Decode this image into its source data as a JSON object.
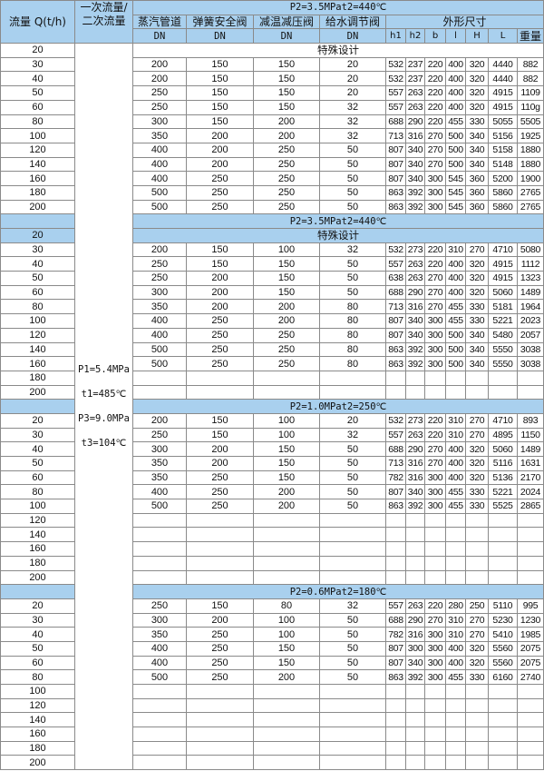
{
  "header": {
    "flow": "流量 Q(t/h)",
    "secondary_flow": "一次流量/二次流量",
    "steam_pipe": "蒸汽管道",
    "safety_valve": "弹簧安全阀",
    "reducing_valve": "减温减压阀",
    "feed_valve": "给水调节阀",
    "dimensions": "外形尺寸",
    "dn": "DN",
    "dim_cols": [
      "h1",
      "h2",
      "b",
      "l",
      "H",
      "L",
      "重量"
    ]
  },
  "side_params": [
    "P1=5.4MPa",
    "t1=485℃",
    "P3=9.0MPa",
    "t3=104℃"
  ],
  "colors": {
    "header_bg": "#a9d0ee",
    "border": "#8a8a8a"
  },
  "sections": [
    {
      "title": "P2=3.5MPat2=440℃",
      "title_in_header": true,
      "rows": [
        {
          "flow": "20",
          "special": "特殊设计"
        },
        {
          "flow": "30",
          "vals": [
            "200",
            "150",
            "150",
            "20",
            "532",
            "237",
            "220",
            "400",
            "320",
            "4440",
            "882"
          ]
        },
        {
          "flow": "40",
          "vals": [
            "200",
            "150",
            "150",
            "20",
            "532",
            "237",
            "220",
            "400",
            "320",
            "4440",
            "882"
          ]
        },
        {
          "flow": "50",
          "vals": [
            "250",
            "150",
            "150",
            "20",
            "557",
            "263",
            "220",
            "400",
            "320",
            "4915",
            "1109"
          ]
        },
        {
          "flow": "60",
          "vals": [
            "250",
            "150",
            "150",
            "32",
            "557",
            "263",
            "220",
            "400",
            "320",
            "4915",
            "110g"
          ]
        },
        {
          "flow": "80",
          "vals": [
            "300",
            "150",
            "200",
            "32",
            "688",
            "290",
            "220",
            "455",
            "330",
            "5055",
            "5505"
          ]
        },
        {
          "flow": "100",
          "vals": [
            "350",
            "200",
            "200",
            "32",
            "713",
            "316",
            "270",
            "500",
            "340",
            "5156",
            "1925"
          ]
        },
        {
          "flow": "120",
          "vals": [
            "400",
            "200",
            "250",
            "50",
            "807",
            "340",
            "270",
            "500",
            "340",
            "5158",
            "1880"
          ]
        },
        {
          "flow": "140",
          "vals": [
            "400",
            "200",
            "250",
            "50",
            "807",
            "340",
            "270",
            "500",
            "340",
            "5148",
            "1880"
          ]
        },
        {
          "flow": "160",
          "vals": [
            "400",
            "250",
            "250",
            "50",
            "807",
            "340",
            "300",
            "545",
            "360",
            "5200",
            "1900"
          ]
        },
        {
          "flow": "180",
          "vals": [
            "500",
            "250",
            "250",
            "50",
            "863",
            "392",
            "300",
            "545",
            "360",
            "5860",
            "2765"
          ]
        },
        {
          "flow": "200",
          "vals": [
            "500",
            "250",
            "250",
            "50",
            "863",
            "392",
            "300",
            "545",
            "360",
            "5860",
            "2765"
          ]
        }
      ]
    },
    {
      "title": "P2=3.5MPat2=440℃",
      "rows": [
        {
          "flow": "20",
          "special": "特殊设计",
          "highlight": true
        },
        {
          "flow": "30",
          "vals": [
            "200",
            "150",
            "100",
            "32",
            "532",
            "273",
            "220",
            "310",
            "270",
            "4710",
            "5080"
          ]
        },
        {
          "flow": "40",
          "vals": [
            "250",
            "150",
            "150",
            "50",
            "557",
            "263",
            "220",
            "400",
            "320",
            "4915",
            "1112"
          ]
        },
        {
          "flow": "50",
          "vals": [
            "250",
            "200",
            "150",
            "50",
            "638",
            "263",
            "270",
            "400",
            "320",
            "4915",
            "1323"
          ]
        },
        {
          "flow": "60",
          "vals": [
            "300",
            "200",
            "150",
            "50",
            "688",
            "290",
            "270",
            "400",
            "320",
            "5060",
            "1489"
          ]
        },
        {
          "flow": "80",
          "vals": [
            "350",
            "200",
            "200",
            "80",
            "713",
            "316",
            "270",
            "455",
            "330",
            "5181",
            "1964"
          ]
        },
        {
          "flow": "100",
          "vals": [
            "400",
            "250",
            "200",
            "80",
            "807",
            "340",
            "300",
            "455",
            "330",
            "5221",
            "2023"
          ]
        },
        {
          "flow": "120",
          "vals": [
            "400",
            "250",
            "250",
            "80",
            "807",
            "340",
            "300",
            "500",
            "340",
            "5480",
            "2057"
          ]
        },
        {
          "flow": "140",
          "vals": [
            "500",
            "250",
            "250",
            "80",
            "863",
            "392",
            "300",
            "500",
            "340",
            "5550",
            "3038"
          ]
        },
        {
          "flow": "160",
          "vals": [
            "500",
            "250",
            "250",
            "80",
            "863",
            "392",
            "300",
            "500",
            "340",
            "5550",
            "3038"
          ]
        },
        {
          "flow": "180",
          "vals": [
            "",
            "",
            "",
            "",
            "",
            "",
            "",
            "",
            "",
            "",
            ""
          ]
        },
        {
          "flow": "200",
          "vals": [
            "",
            "",
            "",
            "",
            "",
            "",
            "",
            "",
            "",
            "",
            ""
          ]
        }
      ]
    },
    {
      "title": "P2=1.0MPat2=250℃",
      "rows": [
        {
          "flow": "20",
          "vals": [
            "200",
            "150",
            "100",
            "20",
            "532",
            "273",
            "220",
            "310",
            "270",
            "4710",
            "893"
          ]
        },
        {
          "flow": "30",
          "vals": [
            "250",
            "150",
            "100",
            "32",
            "557",
            "263",
            "220",
            "310",
            "270",
            "4895",
            "1150"
          ]
        },
        {
          "flow": "40",
          "vals": [
            "300",
            "200",
            "150",
            "50",
            "688",
            "290",
            "270",
            "400",
            "320",
            "5060",
            "1489"
          ]
        },
        {
          "flow": "50",
          "vals": [
            "350",
            "200",
            "150",
            "50",
            "713",
            "316",
            "270",
            "400",
            "320",
            "5116",
            "1631"
          ]
        },
        {
          "flow": "60",
          "vals": [
            "350",
            "250",
            "150",
            "50",
            "782",
            "316",
            "300",
            "400",
            "320",
            "5136",
            "2170"
          ]
        },
        {
          "flow": "80",
          "vals": [
            "400",
            "250",
            "200",
            "50",
            "807",
            "340",
            "300",
            "455",
            "330",
            "5221",
            "2024"
          ]
        },
        {
          "flow": "100",
          "vals": [
            "500",
            "250",
            "200",
            "50",
            "863",
            "392",
            "300",
            "455",
            "330",
            "5525",
            "2865"
          ]
        },
        {
          "flow": "120",
          "vals": [
            "",
            "",
            "",
            "",
            "",
            "",
            "",
            "",
            "",
            "",
            ""
          ]
        },
        {
          "flow": "140",
          "vals": [
            "",
            "",
            "",
            "",
            "",
            "",
            "",
            "",
            "",
            "",
            ""
          ]
        },
        {
          "flow": "160",
          "vals": [
            "",
            "",
            "",
            "",
            "",
            "",
            "",
            "",
            "",
            "",
            ""
          ]
        },
        {
          "flow": "180",
          "vals": [
            "",
            "",
            "",
            "",
            "",
            "",
            "",
            "",
            "",
            "",
            ""
          ]
        },
        {
          "flow": "200",
          "vals": [
            "",
            "",
            "",
            "",
            "",
            "",
            "",
            "",
            "",
            "",
            ""
          ]
        }
      ]
    },
    {
      "title": "P2=0.6MPat2=180℃",
      "rows": [
        {
          "flow": "20",
          "vals": [
            "250",
            "150",
            "80",
            "32",
            "557",
            "263",
            "220",
            "280",
            "250",
            "5110",
            "995"
          ]
        },
        {
          "flow": "30",
          "vals": [
            "300",
            "200",
            "100",
            "50",
            "688",
            "290",
            "270",
            "310",
            "270",
            "5230",
            "1230"
          ]
        },
        {
          "flow": "40",
          "vals": [
            "350",
            "250",
            "100",
            "50",
            "782",
            "316",
            "300",
            "310",
            "270",
            "5410",
            "1985"
          ]
        },
        {
          "flow": "50",
          "vals": [
            "400",
            "250",
            "150",
            "50",
            "807",
            "300",
            "300",
            "400",
            "320",
            "5560",
            "2075"
          ]
        },
        {
          "flow": "60",
          "vals": [
            "400",
            "250",
            "150",
            "50",
            "807",
            "340",
            "300",
            "400",
            "320",
            "5560",
            "2075"
          ]
        },
        {
          "flow": "80",
          "vals": [
            "500",
            "250",
            "200",
            "50",
            "863",
            "392",
            "300",
            "455",
            "330",
            "6160",
            "2740"
          ]
        },
        {
          "flow": "100",
          "vals": [
            "",
            "",
            "",
            "",
            "",
            "",
            "",
            "",
            "",
            "",
            ""
          ]
        },
        {
          "flow": "120",
          "vals": [
            "",
            "",
            "",
            "",
            "",
            "",
            "",
            "",
            "",
            "",
            ""
          ]
        },
        {
          "flow": "140",
          "vals": [
            "",
            "",
            "",
            "",
            "",
            "",
            "",
            "",
            "",
            "",
            ""
          ]
        },
        {
          "flow": "160",
          "vals": [
            "",
            "",
            "",
            "",
            "",
            "",
            "",
            "",
            "",
            "",
            ""
          ]
        },
        {
          "flow": "180",
          "vals": [
            "",
            "",
            "",
            "",
            "",
            "",
            "",
            "",
            "",
            "",
            ""
          ]
        },
        {
          "flow": "200",
          "vals": [
            "",
            "",
            "",
            "",
            "",
            "",
            "",
            "",
            "",
            "",
            ""
          ]
        }
      ]
    }
  ]
}
